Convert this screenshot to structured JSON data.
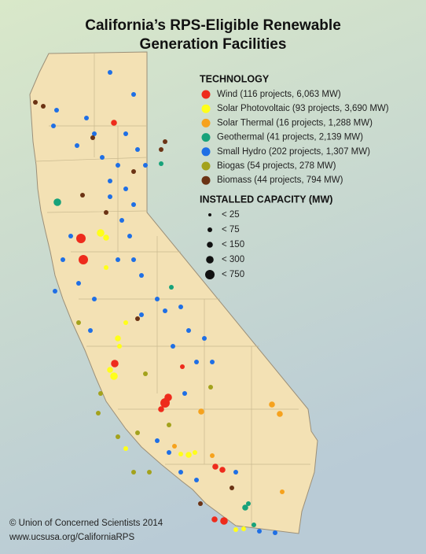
{
  "title_lines": [
    "California’s RPS-Eligible Renewable",
    "Generation Facilities"
  ],
  "technology": {
    "title": "TECHNOLOGY",
    "items": [
      {
        "label": "Wind (116 projects, 6,063 MW)",
        "color": "#ee2b1c"
      },
      {
        "label": "Solar Photovoltaic (93 projects, 3,690 MW)",
        "color": "#ffff1a"
      },
      {
        "label": "Solar Thermal (16 projects, 1,288 MW)",
        "color": "#f6a21d"
      },
      {
        "label": "Geothermal (41 projects, 2,139 MW)",
        "color": "#17a27a"
      },
      {
        "label": "Small Hydro (202 projects, 1,307 MW)",
        "color": "#1f6fe5"
      },
      {
        "label": "Biogas (54 projects, 278 MW)",
        "color": "#a3a21c"
      },
      {
        "label": "Biomass (44 projects, 794 MW)",
        "color": "#6b3314"
      }
    ]
  },
  "capacity": {
    "title": "INSTALLED CAPACITY (MW)",
    "sizes": [
      "< 25",
      "< 75",
      "< 150",
      "< 300",
      "< 750"
    ]
  },
  "footer": [
    "© Union of Concerned Scientists 2014",
    "www.ucsusa.org/CaliforniaRPS"
  ]
}
